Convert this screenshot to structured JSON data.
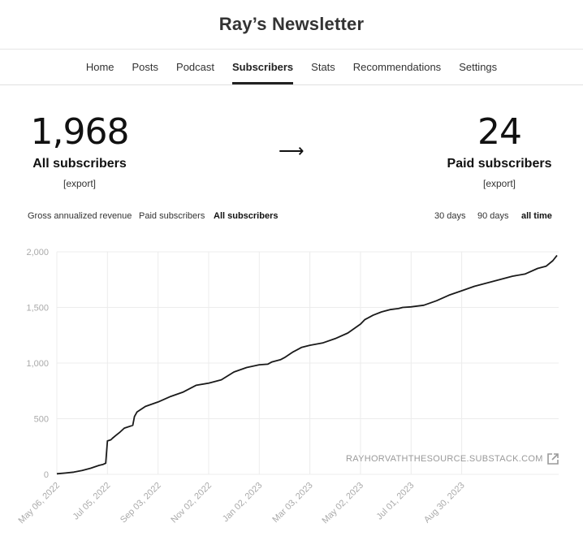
{
  "header": {
    "title": "Ray’s Newsletter"
  },
  "nav": {
    "items": [
      {
        "label": "Home",
        "active": false
      },
      {
        "label": "Posts",
        "active": false
      },
      {
        "label": "Podcast",
        "active": false
      },
      {
        "label": "Subscribers",
        "active": true
      },
      {
        "label": "Stats",
        "active": false
      },
      {
        "label": "Recommendations",
        "active": false
      },
      {
        "label": "Settings",
        "active": false
      }
    ]
  },
  "summary": {
    "all_subscribers": {
      "value": "1,968",
      "label": "All subscribers",
      "export": "[export]"
    },
    "arrow": "⟶",
    "paid_subscribers": {
      "value": "24",
      "label": "Paid subscribers",
      "export": "[export]"
    }
  },
  "metric_tabs": [
    {
      "label": "Gross annualized revenue",
      "active": false
    },
    {
      "label": "Paid subscribers",
      "active": false
    },
    {
      "label": "All subscribers",
      "active": true
    }
  ],
  "range_tabs": [
    {
      "label": "30 days",
      "active": false
    },
    {
      "label": "90 days",
      "active": false
    },
    {
      "label": "all time",
      "active": true
    }
  ],
  "chart_link": "RAYHORVATHTHESOURCE.SUBSTACK.COM",
  "colors": {
    "line": "#1a1a1a",
    "grid": "#ececec",
    "axis_text": "#aaaaaa"
  },
  "chart_data": {
    "type": "line",
    "title": "All subscribers",
    "xlabel": "",
    "ylabel": "",
    "ylim": [
      0,
      2000
    ],
    "yticks": [
      "0",
      "500",
      "1,000",
      "1,500",
      "2,000"
    ],
    "xticks": [
      "May 06, 2022",
      "Jul 05, 2022",
      "Sep 03, 2022",
      "Nov 02, 2022",
      "Jan 02, 2023",
      "Mar 03, 2023",
      "May 02, 2023",
      "Jul 01, 2023",
      "Aug 30, 2023"
    ],
    "x_days": [
      0,
      10,
      20,
      30,
      40,
      50,
      55,
      58,
      60,
      64,
      66,
      70,
      75,
      80,
      90,
      92,
      95,
      105,
      120,
      135,
      150,
      165,
      180,
      195,
      210,
      225,
      240,
      250,
      255,
      265,
      270,
      280,
      285,
      290,
      300,
      315,
      330,
      345,
      360,
      365,
      370,
      375,
      385,
      395,
      405,
      410,
      420,
      435,
      450,
      465,
      480,
      495,
      510,
      525,
      540,
      555,
      570,
      580,
      588,
      593
    ],
    "y": [
      5,
      12,
      20,
      35,
      55,
      80,
      90,
      100,
      300,
      310,
      325,
      350,
      380,
      415,
      440,
      520,
      560,
      610,
      650,
      700,
      740,
      800,
      820,
      850,
      920,
      960,
      985,
      990,
      1010,
      1030,
      1050,
      1100,
      1120,
      1140,
      1160,
      1180,
      1220,
      1270,
      1350,
      1390,
      1410,
      1430,
      1460,
      1480,
      1490,
      1500,
      1505,
      1520,
      1560,
      1610,
      1650,
      1690,
      1720,
      1750,
      1780,
      1800,
      1850,
      1870,
      1920,
      1968
    ]
  }
}
